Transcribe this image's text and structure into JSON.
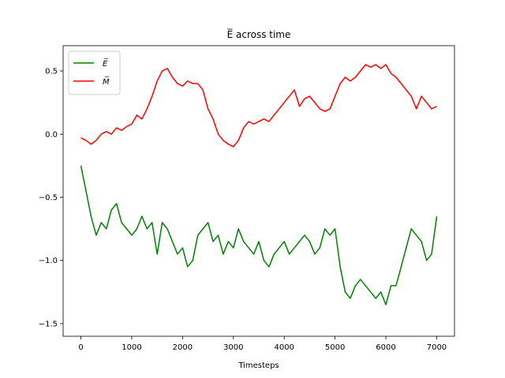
{
  "chart_data": {
    "type": "line",
    "title": "E̅ across time",
    "xlabel": "Timesteps",
    "ylabel": "",
    "xlim": [
      -350,
      7350
    ],
    "ylim": [
      -1.6,
      0.7
    ],
    "x_ticks": [
      0,
      1000,
      2000,
      3000,
      4000,
      5000,
      6000,
      7000
    ],
    "y_ticks": [
      -1.5,
      -1.0,
      -0.5,
      0.0,
      0.5
    ],
    "x_tick_labels": [
      "0",
      "1000",
      "2000",
      "3000",
      "4000",
      "5000",
      "6000",
      "7000"
    ],
    "y_tick_labels": [
      "−1.5",
      "−1.0",
      "−0.5",
      "0.0",
      "0.5"
    ],
    "legend_position": "top-left",
    "grid": false,
    "series": [
      {
        "name": "E̅",
        "color": "#008000",
        "x": [
          0,
          100,
          200,
          300,
          400,
          500,
          600,
          700,
          800,
          900,
          1000,
          1100,
          1200,
          1300,
          1400,
          1500,
          1600,
          1700,
          1800,
          1900,
          2000,
          2100,
          2200,
          2300,
          2400,
          2500,
          2600,
          2700,
          2800,
          2900,
          3000,
          3100,
          3200,
          3300,
          3400,
          3500,
          3600,
          3700,
          3800,
          3900,
          4000,
          4100,
          4200,
          4300,
          4400,
          4500,
          4600,
          4700,
          4800,
          4900,
          5000,
          5100,
          5200,
          5300,
          5400,
          5500,
          5600,
          5700,
          5800,
          5900,
          6000,
          6100,
          6200,
          6300,
          6400,
          6500,
          6600,
          6700,
          6800,
          6900,
          7000
        ],
        "values": [
          -0.25,
          -0.45,
          -0.65,
          -0.8,
          -0.7,
          -0.75,
          -0.6,
          -0.55,
          -0.7,
          -0.75,
          -0.8,
          -0.75,
          -0.65,
          -0.75,
          -0.7,
          -0.95,
          -0.7,
          -0.75,
          -0.85,
          -0.95,
          -0.9,
          -1.05,
          -1.0,
          -0.8,
          -0.75,
          -0.7,
          -0.85,
          -0.8,
          -0.95,
          -0.85,
          -0.9,
          -0.75,
          -0.85,
          -0.9,
          -0.95,
          -0.85,
          -1.0,
          -1.05,
          -0.95,
          -0.9,
          -0.85,
          -0.95,
          -0.9,
          -0.85,
          -0.8,
          -0.85,
          -0.95,
          -0.9,
          -0.75,
          -0.8,
          -0.75,
          -1.05,
          -1.25,
          -1.3,
          -1.2,
          -1.15,
          -1.2,
          -1.25,
          -1.3,
          -1.25,
          -1.35,
          -1.2,
          -1.2,
          -1.05,
          -0.9,
          -0.75,
          -0.8,
          -0.85,
          -1.0,
          -0.95,
          -0.65
        ]
      },
      {
        "name": "M̅",
        "color": "#ff0000",
        "x": [
          0,
          100,
          200,
          300,
          400,
          500,
          600,
          700,
          800,
          900,
          1000,
          1100,
          1200,
          1300,
          1400,
          1500,
          1600,
          1700,
          1800,
          1900,
          2000,
          2100,
          2200,
          2300,
          2400,
          2500,
          2600,
          2700,
          2800,
          2900,
          3000,
          3100,
          3200,
          3300,
          3400,
          3500,
          3600,
          3700,
          3800,
          3900,
          4000,
          4100,
          4200,
          4300,
          4400,
          4500,
          4600,
          4700,
          4800,
          4900,
          5000,
          5100,
          5200,
          5300,
          5400,
          5500,
          5600,
          5700,
          5800,
          5900,
          6000,
          6100,
          6200,
          6300,
          6400,
          6500,
          6600,
          6700,
          6800,
          6900,
          7000
        ],
        "values": [
          -0.03,
          -0.05,
          -0.08,
          -0.05,
          0.0,
          0.02,
          0.0,
          0.05,
          0.03,
          0.06,
          0.08,
          0.15,
          0.12,
          0.2,
          0.3,
          0.42,
          0.5,
          0.52,
          0.45,
          0.4,
          0.38,
          0.42,
          0.4,
          0.4,
          0.35,
          0.2,
          0.12,
          0.0,
          -0.05,
          -0.08,
          -0.1,
          -0.05,
          0.05,
          0.1,
          0.08,
          0.1,
          0.12,
          0.1,
          0.15,
          0.2,
          0.25,
          0.3,
          0.35,
          0.22,
          0.28,
          0.3,
          0.25,
          0.2,
          0.18,
          0.2,
          0.3,
          0.4,
          0.45,
          0.42,
          0.45,
          0.5,
          0.55,
          0.53,
          0.55,
          0.52,
          0.55,
          0.48,
          0.45,
          0.4,
          0.35,
          0.3,
          0.2,
          0.3,
          0.25,
          0.2,
          0.22
        ]
      }
    ]
  }
}
